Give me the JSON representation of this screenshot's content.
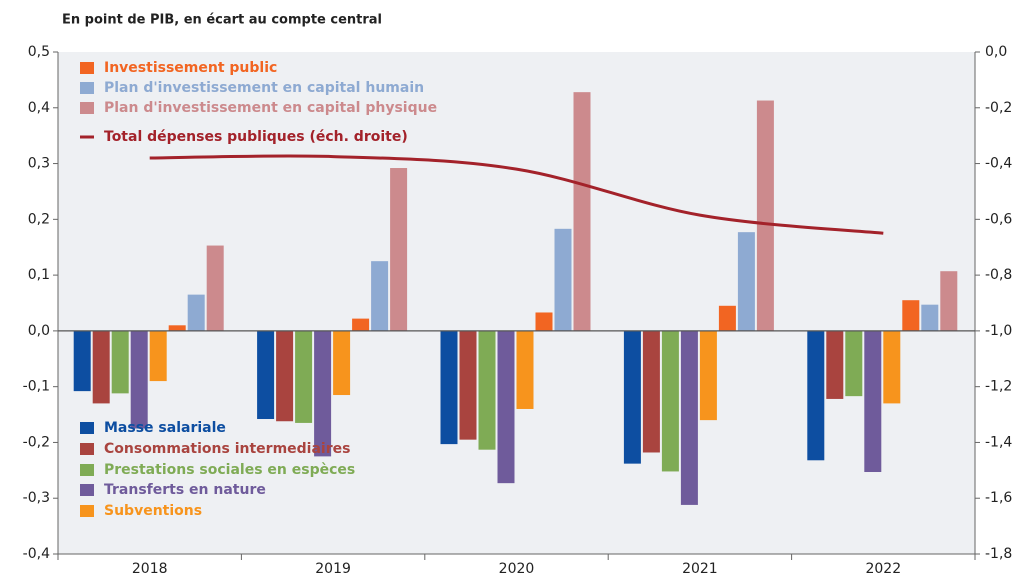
{
  "chart_data": {
    "type": "bar",
    "title": "En point de PIB, en écart au compte central",
    "categories": [
      "2018",
      "2019",
      "2020",
      "2021",
      "2022"
    ],
    "series": [
      {
        "name": "Masse salariale",
        "color": "#0d4ea1",
        "values": [
          -0.108,
          -0.158,
          -0.203,
          -0.238,
          -0.232
        ]
      },
      {
        "name": "Consommations intermediaires",
        "color": "#a9443f",
        "values": [
          -0.13,
          -0.162,
          -0.195,
          -0.218,
          -0.122
        ]
      },
      {
        "name": "Prestations sociales en espèces",
        "color": "#7fab55",
        "values": [
          -0.112,
          -0.165,
          -0.213,
          -0.252,
          -0.117
        ]
      },
      {
        "name": "Transferts en nature",
        "color": "#6f5b9b",
        "values": [
          -0.175,
          -0.225,
          -0.273,
          -0.312,
          -0.253
        ]
      },
      {
        "name": "Subventions",
        "color": "#f7941d",
        "values": [
          -0.09,
          -0.115,
          -0.14,
          -0.16,
          -0.13
        ]
      },
      {
        "name": "Investissement public",
        "color": "#f26522",
        "values": [
          0.01,
          0.022,
          0.033,
          0.045,
          0.055
        ]
      },
      {
        "name": "Plan d'investissement en capital humain",
        "color": "#8eaad2",
        "values": [
          0.065,
          0.125,
          0.183,
          0.177,
          0.047
        ]
      },
      {
        "name": "Plan d'investissement en capital physique",
        "color": "#cc8a8d",
        "values": [
          0.153,
          0.292,
          0.428,
          0.413,
          0.107
        ]
      },
      {
        "name": "Total dépenses publiques (éch. droite)",
        "color": "#a3222a",
        "type": "line",
        "axis": "y2",
        "values": [
          -0.38,
          -0.375,
          -0.42,
          -0.585,
          -0.65
        ]
      }
    ],
    "ylim": [
      -0.4,
      0.5
    ],
    "yticks": [
      {
        "value": -0.4,
        "label": "-0,4"
      },
      {
        "value": -0.3,
        "label": "-0,3"
      },
      {
        "value": -0.2,
        "label": "-0,2"
      },
      {
        "value": -0.1,
        "label": "-0,1"
      },
      {
        "value": 0,
        "label": "0,0"
      },
      {
        "value": 0.1,
        "label": "0,1"
      },
      {
        "value": 0.2,
        "label": "0,2"
      },
      {
        "value": 0.3,
        "label": "0,3"
      },
      {
        "value": 0.4,
        "label": "0,4"
      },
      {
        "value": 0.5,
        "label": "0,5"
      }
    ],
    "y2lim": [
      -1.8,
      0
    ],
    "y2ticks": [
      {
        "value": -1.8,
        "label": "-1,8"
      },
      {
        "value": -1.6,
        "label": "-1,6"
      },
      {
        "value": -1.4,
        "label": "-1,4"
      },
      {
        "value": -1.2,
        "label": "-1,2"
      },
      {
        "value": -1,
        "label": "-1,0"
      },
      {
        "value": -0.8,
        "label": "-0,8"
      },
      {
        "value": -0.6,
        "label": "-0,6"
      },
      {
        "value": -0.4,
        "label": "-0,4"
      },
      {
        "value": -0.2,
        "label": "-0,2"
      },
      {
        "value": 0,
        "label": "0,0"
      }
    ]
  }
}
